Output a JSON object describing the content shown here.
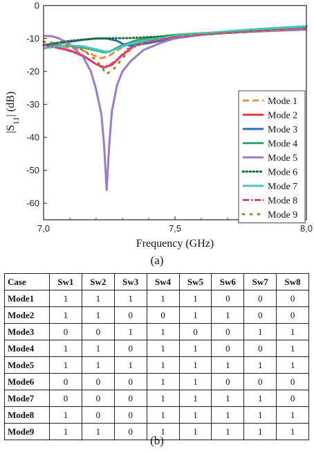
{
  "chart_data": {
    "type": "line",
    "xlabel": "Frequency (GHz)",
    "ylabel": "|S11| (dB)",
    "xlim": [
      7.0,
      8.0
    ],
    "ylim": [
      -65,
      0
    ],
    "xticks": [
      "7,0",
      "7,5",
      "8,0"
    ],
    "yticks": [
      "0",
      "-10",
      "-20",
      "-30",
      "-40",
      "-50",
      "-60"
    ],
    "legend_position": "bottom-right",
    "series": [
      {
        "name": "Mode 1",
        "color": "#f39233",
        "dash": "dash",
        "x": [
          7.0,
          7.05,
          7.1,
          7.15,
          7.2,
          7.22,
          7.25,
          7.28,
          7.32,
          7.4,
          7.5,
          7.6,
          7.7,
          7.8,
          7.9,
          8.0
        ],
        "y": [
          -12,
          -12.3,
          -12.7,
          -13.6,
          -15.4,
          -16.0,
          -15.2,
          -13.6,
          -11.8,
          -10.1,
          -9.0,
          -8.6,
          -8.2,
          -7.8,
          -7.4,
          -7.0
        ]
      },
      {
        "name": "Mode 2",
        "color": "#e8413f",
        "dash": "solid",
        "x": [
          7.0,
          7.05,
          7.1,
          7.15,
          7.2,
          7.23,
          7.26,
          7.3,
          7.35,
          7.4,
          7.5,
          7.6,
          7.7,
          7.8,
          7.9,
          8.0
        ],
        "y": [
          -12,
          -12.7,
          -13.6,
          -15.2,
          -17.8,
          -18.8,
          -18.0,
          -15.0,
          -12.0,
          -10.6,
          -9.3,
          -8.8,
          -8.3,
          -7.9,
          -7.5,
          -7.2
        ]
      },
      {
        "name": "Mode 3",
        "color": "#2c69b3",
        "dash": "solid",
        "x": [
          7.0,
          7.05,
          7.1,
          7.15,
          7.2,
          7.24,
          7.28,
          7.3,
          7.33,
          7.4,
          7.5,
          7.6,
          7.7,
          7.8,
          7.9,
          8.0
        ],
        "y": [
          -12,
          -11.5,
          -11.0,
          -10.4,
          -10.0,
          -10.0,
          -10.7,
          -11.6,
          -12.2,
          -11.4,
          -9.8,
          -8.9,
          -8.1,
          -7.5,
          -6.9,
          -6.3
        ]
      },
      {
        "name": "Mode 4",
        "color": "#34a870",
        "dash": "solid",
        "x": [
          7.0,
          7.05,
          7.1,
          7.15,
          7.2,
          7.23,
          7.25,
          7.3,
          7.35,
          7.4,
          7.5,
          7.6,
          7.7,
          7.8,
          7.9,
          8.0
        ],
        "y": [
          -12,
          -12.1,
          -12.3,
          -12.8,
          -13.6,
          -14.2,
          -14.0,
          -12.0,
          -10.6,
          -9.8,
          -8.9,
          -8.4,
          -8.0,
          -7.6,
          -7.1,
          -6.6
        ]
      },
      {
        "name": "Mode 5",
        "color": "#9b7ac8",
        "dash": "solid",
        "x": [
          7.0,
          7.03,
          7.06,
          7.1,
          7.15,
          7.18,
          7.2,
          7.22,
          7.23,
          7.24,
          7.25,
          7.26,
          7.28,
          7.3,
          7.33,
          7.38,
          7.45,
          7.5,
          7.6,
          7.7,
          7.8,
          7.9,
          8.0
        ],
        "y": [
          -9.2,
          -9.3,
          -10.0,
          -11.8,
          -15.5,
          -20.0,
          -25.5,
          -33.0,
          -42.0,
          -56.0,
          -42.0,
          -32.0,
          -24.0,
          -20.0,
          -17.0,
          -13.5,
          -11.2,
          -10.0,
          -8.9,
          -8.3,
          -7.9,
          -7.6,
          -7.3
        ]
      },
      {
        "name": "Mode 6",
        "color": "#1e6b3a",
        "dash": "dot",
        "x": [
          7.0,
          7.05,
          7.1,
          7.15,
          7.2,
          7.25,
          7.3,
          7.35,
          7.4,
          7.5,
          7.6,
          7.7,
          7.8,
          7.9,
          8.0
        ],
        "y": [
          -12,
          -11.3,
          -10.7,
          -10.3,
          -10.0,
          -9.9,
          -9.9,
          -9.8,
          -9.6,
          -9.2,
          -8.7,
          -8.1,
          -7.5,
          -6.9,
          -6.3
        ]
      },
      {
        "name": "Mode 7",
        "color": "#46c6c8",
        "dash": "solid",
        "x": [
          7.0,
          7.05,
          7.1,
          7.15,
          7.2,
          7.23,
          7.25,
          7.28,
          7.32,
          7.4,
          7.5,
          7.6,
          7.7,
          7.8,
          7.9,
          8.0
        ],
        "y": [
          -13,
          -12.4,
          -12.1,
          -12.4,
          -13.3,
          -13.9,
          -13.9,
          -13.1,
          -11.8,
          -10.4,
          -9.2,
          -8.5,
          -7.8,
          -7.2,
          -6.7,
          -6.3
        ]
      },
      {
        "name": "Mode 8",
        "color": "#e03c8a",
        "dash": "dashdot",
        "x": [
          7.0,
          7.05,
          7.1,
          7.15,
          7.2,
          7.22,
          7.25,
          7.28,
          7.32,
          7.4,
          7.5,
          7.6,
          7.7,
          7.8,
          7.9,
          8.0
        ],
        "y": [
          -12,
          -12.8,
          -13.8,
          -15.3,
          -17.8,
          -18.6,
          -18.2,
          -16.4,
          -13.2,
          -10.9,
          -9.6,
          -8.9,
          -8.3,
          -7.8,
          -7.4,
          -7.0
        ]
      },
      {
        "name": "Mode 9",
        "color": "#8b8f38",
        "dash": "sparse",
        "x": [
          7.0,
          7.05,
          7.1,
          7.15,
          7.2,
          7.24,
          7.27,
          7.3,
          7.34,
          7.4,
          7.5,
          7.6,
          7.7,
          7.8,
          7.9,
          8.0
        ],
        "y": [
          -11,
          -11.4,
          -12.1,
          -13.5,
          -16.5,
          -20.8,
          -19.0,
          -16.0,
          -12.5,
          -10.7,
          -9.3,
          -8.7,
          -8.2,
          -7.7,
          -7.3,
          -6.9
        ]
      }
    ]
  },
  "caption_a": "(a)",
  "caption_b": "(b)",
  "table": {
    "headers": [
      "Case",
      "Sw1",
      "Sw2",
      "Sw3",
      "Sw4",
      "Sw5",
      "Sw6",
      "Sw7",
      "Sw8"
    ],
    "rows": [
      [
        "Mode1",
        "1",
        "1",
        "1",
        "1",
        "1",
        "0",
        "0",
        "0"
      ],
      [
        "Mode2",
        "1",
        "1",
        "0",
        "0",
        "1",
        "1",
        "0",
        "0"
      ],
      [
        "Mode3",
        "0",
        "0",
        "1",
        "1",
        "0",
        "0",
        "1",
        "1"
      ],
      [
        "Mode4",
        "1",
        "1",
        "0",
        "1",
        "1",
        "0",
        "0",
        "1"
      ],
      [
        "Mode5",
        "1",
        "1",
        "1",
        "1",
        "1",
        "1",
        "1",
        "1"
      ],
      [
        "Mode6",
        "0",
        "0",
        "0",
        "1",
        "1",
        "0",
        "0",
        "0"
      ],
      [
        "Mode7",
        "0",
        "0",
        "0",
        "1",
        "1",
        "1",
        "1",
        "0"
      ],
      [
        "Mode8",
        "1",
        "0",
        "0",
        "1",
        "1",
        "1",
        "1",
        "1"
      ],
      [
        "Mode9",
        "1",
        "1",
        "0",
        "1",
        "1",
        "1",
        "1",
        "1"
      ]
    ]
  }
}
